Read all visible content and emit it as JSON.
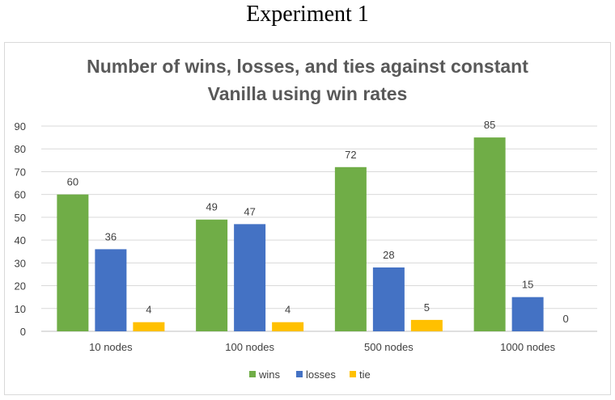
{
  "heading": "Experiment 1",
  "chart_data": {
    "type": "bar",
    "title": [
      "Number of wins, losses, and ties against constant",
      "Vanilla using win rates"
    ],
    "categories": [
      "10 nodes",
      "100 nodes",
      "500 nodes",
      "1000 nodes"
    ],
    "series": [
      {
        "name": "wins",
        "values": [
          60,
          49,
          72,
          85
        ],
        "color": "#70ad47"
      },
      {
        "name": "losses",
        "values": [
          36,
          47,
          28,
          15
        ],
        "color": "#4472c4"
      },
      {
        "name": "tie",
        "values": [
          4,
          4,
          5,
          0
        ],
        "color": "#ffc000"
      }
    ],
    "ylim": [
      0,
      90
    ],
    "yticks": [
      0,
      10,
      20,
      30,
      40,
      50,
      60,
      70,
      80,
      90
    ],
    "grid": true,
    "legend_position": "bottom",
    "data_labels": true
  }
}
